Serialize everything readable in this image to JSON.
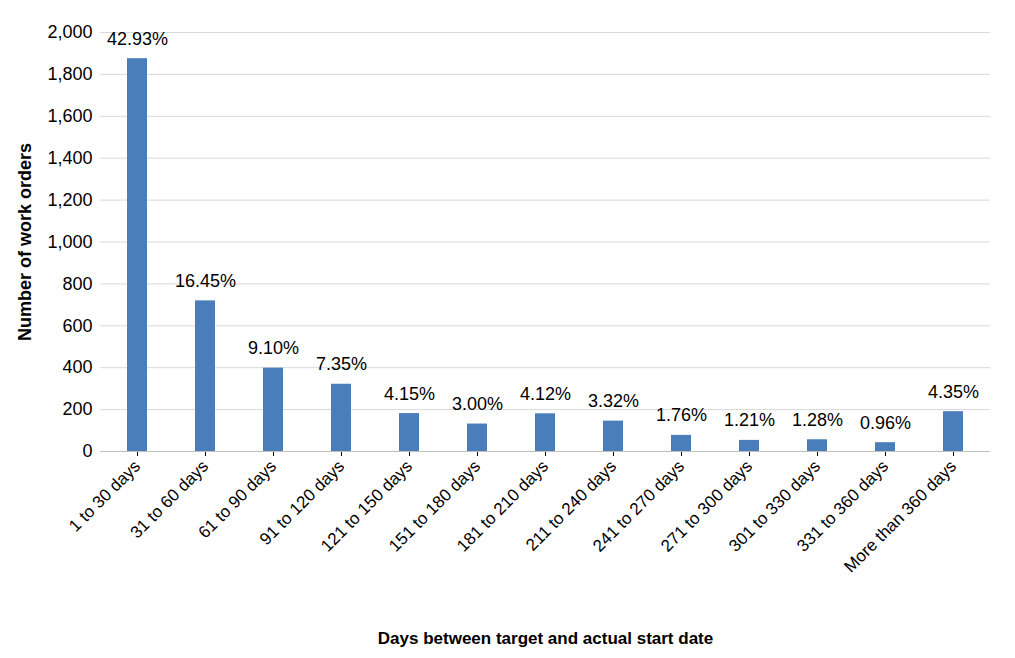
{
  "chart_data": {
    "type": "bar",
    "x_label": "Days between target and actual start date",
    "y_label": "Number of work orders",
    "categories": [
      "1 to 30 days",
      "31 to 60 days",
      "61 to 90 days",
      "91 to 120 days",
      "121 to 150 days",
      "151 to 180 days",
      "181 to 210 days",
      "211 to 240 days",
      "241 to 270 days",
      "271 to 300 days",
      "301 to 330 days",
      "331 to 360 days",
      "More than 360 days"
    ],
    "values": [
      1875,
      719,
      398,
      321,
      181,
      131,
      180,
      145,
      77,
      53,
      56,
      42,
      190
    ],
    "share_labels": [
      "42.93%",
      "16.45%",
      "9.10%",
      "7.35%",
      "4.15%",
      "3.00%",
      "4.12%",
      "3.32%",
      "1.76%",
      "1.21%",
      "1.28%",
      "0.96%",
      "4.35%"
    ],
    "color": "#4a7ebb",
    "ylim": [
      0,
      2000
    ],
    "yticks": [
      0,
      200,
      400,
      600,
      800,
      1000,
      1200,
      1400,
      1600,
      1800,
      2000
    ],
    "grid": true
  }
}
